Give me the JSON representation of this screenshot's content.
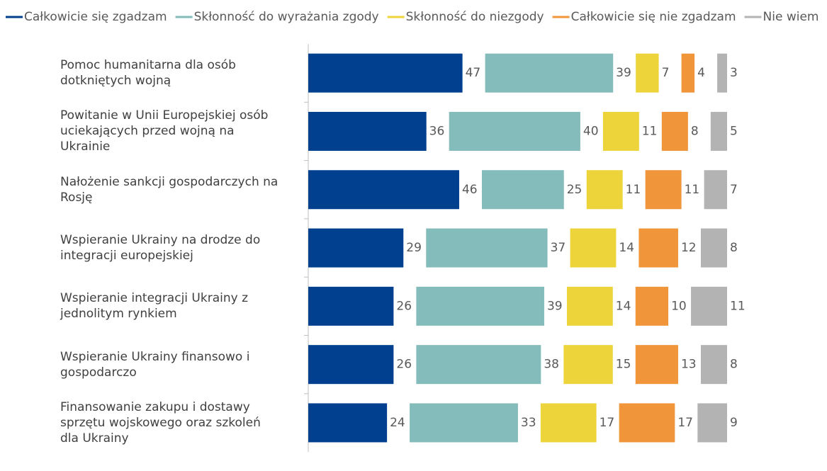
{
  "chart_data": {
    "type": "bar",
    "orientation": "horizontal",
    "categories": [
      "Pomoc humanitarna dla osób dotkniętych wojną",
      "Powitanie w Unii Europejskiej osób uciekających przed wojną na Ukrainie",
      "Nałożenie sankcji gospodarczych na Rosję",
      "Wspieranie Ukrainy na drodze do integracji europejskiej",
      "Wspieranie integracji Ukrainy z jednolitym rynkiem",
      "Wspieranie Ukrainy finansowo i gospodarczo",
      "Finansowanie zakupu i dostawy sprzętu wojskowego oraz szkoleń dla Ukrainy"
    ],
    "series": [
      {
        "name": "Całkowicie się zgadzam",
        "color": "#00408f",
        "values": [
          47,
          36,
          46,
          29,
          26,
          26,
          24
        ]
      },
      {
        "name": "Skłonność do wyrażania zgody",
        "color": "#84bbbb",
        "values": [
          39,
          40,
          25,
          37,
          39,
          38,
          33
        ]
      },
      {
        "name": "Skłonność do niezgody",
        "color": "#ecd43a",
        "values": [
          7,
          11,
          11,
          14,
          14,
          15,
          17
        ]
      },
      {
        "name": "Całkowicie się nie zgadzam",
        "color": "#f0953a",
        "values": [
          4,
          8,
          11,
          12,
          10,
          13,
          17
        ]
      },
      {
        "name": "Nie wiem",
        "color": "#b3b3b3",
        "values": [
          3,
          5,
          7,
          8,
          11,
          8,
          9
        ]
      }
    ],
    "legend": "top"
  }
}
